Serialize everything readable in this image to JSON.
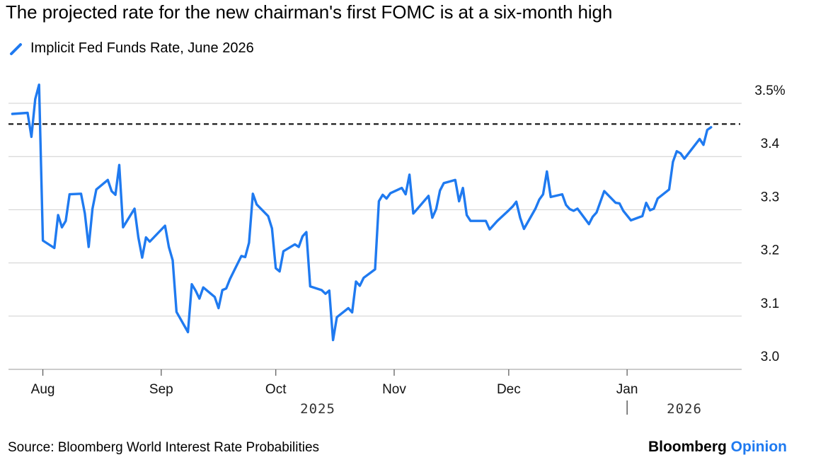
{
  "chart_data": {
    "type": "line",
    "title": "The projected rate for the new chairman's first FOMC is at a six-month high",
    "series": [
      {
        "name": "Implicit Fed Funds Rate, June 2026",
        "color": "#1f7af0",
        "x": [
          "2025-07-24",
          "2025-07-28",
          "2025-07-29",
          "2025-07-30",
          "2025-07-31",
          "2025-08-01",
          "2025-08-04",
          "2025-08-05",
          "2025-08-06",
          "2025-08-07",
          "2025-08-08",
          "2025-08-11",
          "2025-08-12",
          "2025-08-13",
          "2025-08-14",
          "2025-08-15",
          "2025-08-18",
          "2025-08-19",
          "2025-08-20",
          "2025-08-21",
          "2025-08-22",
          "2025-08-25",
          "2025-08-26",
          "2025-08-27",
          "2025-08-28",
          "2025-08-29",
          "2025-09-02",
          "2025-09-03",
          "2025-09-04",
          "2025-09-05",
          "2025-09-08",
          "2025-09-09",
          "2025-09-10",
          "2025-09-11",
          "2025-09-12",
          "2025-09-15",
          "2025-09-16",
          "2025-09-17",
          "2025-09-18",
          "2025-09-19",
          "2025-09-22",
          "2025-09-23",
          "2025-09-24",
          "2025-09-25",
          "2025-09-26",
          "2025-09-29",
          "2025-09-30",
          "2025-10-01",
          "2025-10-02",
          "2025-10-03",
          "2025-10-06",
          "2025-10-07",
          "2025-10-08",
          "2025-10-09",
          "2025-10-10",
          "2025-10-13",
          "2025-10-14",
          "2025-10-15",
          "2025-10-16",
          "2025-10-17",
          "2025-10-20",
          "2025-10-21",
          "2025-10-22",
          "2025-10-23",
          "2025-10-24",
          "2025-10-27",
          "2025-10-28",
          "2025-10-29",
          "2025-10-30",
          "2025-10-31",
          "2025-11-03",
          "2025-11-04",
          "2025-11-05",
          "2025-11-06",
          "2025-11-07",
          "2025-11-10",
          "2025-11-11",
          "2025-11-12",
          "2025-11-13",
          "2025-11-14",
          "2025-11-17",
          "2025-11-18",
          "2025-11-19",
          "2025-11-20",
          "2025-11-21",
          "2025-11-24",
          "2025-11-25",
          "2025-11-26",
          "2025-11-28",
          "2025-12-01",
          "2025-12-02",
          "2025-12-03",
          "2025-12-04",
          "2025-12-05",
          "2025-12-08",
          "2025-12-09",
          "2025-12-10",
          "2025-12-11",
          "2025-12-12",
          "2025-12-15",
          "2025-12-16",
          "2025-12-17",
          "2025-12-18",
          "2025-12-19",
          "2025-12-22",
          "2025-12-23",
          "2025-12-24",
          "2025-12-26",
          "2025-12-29",
          "2025-12-30",
          "2025-12-31",
          "2026-01-02",
          "2026-01-05",
          "2026-01-06",
          "2026-01-07",
          "2026-01-08",
          "2026-01-09",
          "2026-01-12",
          "2026-01-13",
          "2026-01-14",
          "2026-01-15",
          "2026-01-16",
          "2026-01-20",
          "2026-01-21",
          "2026-01-22",
          "2026-01-23"
        ],
        "values": [
          3.48,
          3.482,
          3.437,
          3.508,
          3.535,
          3.242,
          3.228,
          3.29,
          3.267,
          3.279,
          3.329,
          3.33,
          3.293,
          3.23,
          3.302,
          3.338,
          3.356,
          3.335,
          3.328,
          3.384,
          3.267,
          3.302,
          3.248,
          3.21,
          3.248,
          3.24,
          3.27,
          3.23,
          3.205,
          3.108,
          3.07,
          3.16,
          3.148,
          3.133,
          3.154,
          3.136,
          3.115,
          3.149,
          3.152,
          3.17,
          3.213,
          3.211,
          3.238,
          3.33,
          3.31,
          3.288,
          3.265,
          3.19,
          3.184,
          3.222,
          3.235,
          3.23,
          3.25,
          3.258,
          3.156,
          3.149,
          3.142,
          3.148,
          3.055,
          3.098,
          3.115,
          3.107,
          3.165,
          3.157,
          3.172,
          3.188,
          3.316,
          3.328,
          3.321,
          3.331,
          3.341,
          3.329,
          3.366,
          3.293,
          3.301,
          3.326,
          3.285,
          3.301,
          3.336,
          3.35,
          3.356,
          3.316,
          3.341,
          3.29,
          3.279,
          3.279,
          3.279,
          3.263,
          3.279,
          3.299,
          3.306,
          3.315,
          3.285,
          3.264,
          3.302,
          3.319,
          3.329,
          3.372,
          3.324,
          3.329,
          3.309,
          3.301,
          3.298,
          3.302,
          3.273,
          3.287,
          3.295,
          3.335,
          3.313,
          3.312,
          3.298,
          3.28,
          3.288,
          3.313,
          3.299,
          3.302,
          3.321,
          3.338,
          3.39,
          3.41,
          3.406,
          3.396,
          3.433,
          3.422,
          3.45,
          3.455
        ]
      }
    ],
    "reference_line": {
      "value": 3.461,
      "style": "dashed"
    },
    "xticks": [
      {
        "date": "2025-08-01",
        "label": "Aug"
      },
      {
        "date": "2025-09-01",
        "label": "Sep"
      },
      {
        "date": "2025-10-01",
        "label": "Oct"
      },
      {
        "date": "2025-11-01",
        "label": "Nov"
      },
      {
        "date": "2025-12-01",
        "label": "Dec"
      },
      {
        "date": "2026-01-01",
        "label": "Jan"
      }
    ],
    "year_labels": [
      {
        "date": "2025-10-12",
        "label": "2025"
      },
      {
        "date": "2026-01-16",
        "label": "2026"
      }
    ],
    "year_separator_date": "2026-01-01",
    "yticks": [
      {
        "value": 3.5,
        "label": "3.5%"
      },
      {
        "value": 3.4,
        "label": "3.4"
      },
      {
        "value": 3.3,
        "label": "3.3"
      },
      {
        "value": 3.2,
        "label": "3.2"
      },
      {
        "value": 3.1,
        "label": "3.1"
      },
      {
        "value": 3.0,
        "label": "3.0"
      }
    ],
    "ylim": [
      3.0,
      3.5
    ],
    "xlim": [
      "2025-07-23",
      "2026-01-31"
    ],
    "grid": true
  },
  "footer": {
    "source": "Source: Bloomberg World Interest Rate Probabilities",
    "brand_name": "Bloomberg",
    "brand_accent": "Opinion"
  }
}
